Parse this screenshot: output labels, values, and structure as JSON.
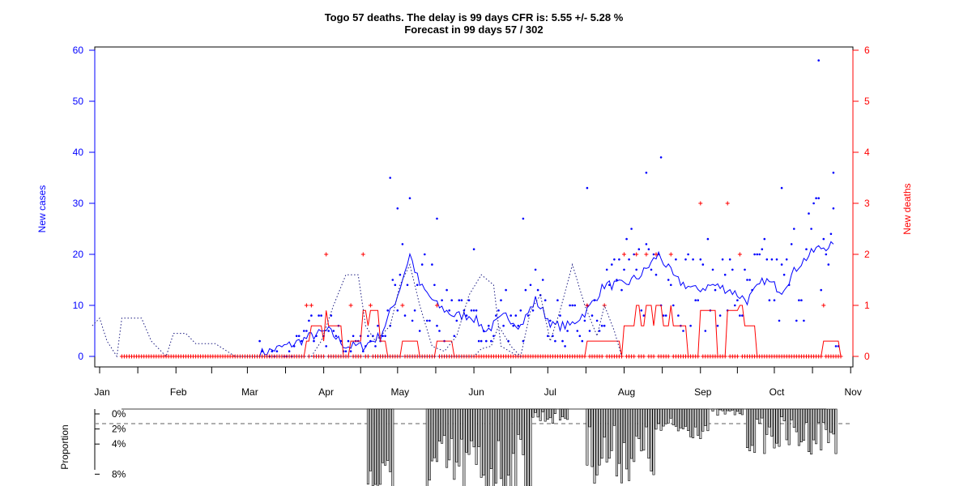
{
  "title_line1": "Togo 57 deaths. The delay is 99 days CFR is: 5.55 +/- 5.28 %",
  "title_line2": "Forecast in 99 days 57 / 302",
  "colors": {
    "cases": "#0000ff",
    "deaths": "#ff0000",
    "shifted": "#1a1a80",
    "axis": "#000000",
    "bar_fill": "#d3d3d3",
    "dashed": "#7f7f7f"
  },
  "chart_data": [
    {
      "type": "scatter",
      "title": "Togo 57 deaths. The delay is 99 days CFR is: 5.55 +/- 5.28 %",
      "subtitle": "Forecast in 99 days 57 / 302",
      "x_axis": {
        "ticks": [
          "Jan",
          "Feb",
          "Mar",
          "Apr",
          "May",
          "Jun",
          "Jul",
          "Aug",
          "Sep",
          "Oct",
          "Nov"
        ]
      },
      "y_left": {
        "label": "New cases",
        "ticks": [
          0,
          10,
          20,
          30,
          40,
          50,
          60
        ],
        "range": [
          0,
          60
        ]
      },
      "y_right": {
        "label": "New deaths",
        "ticks": [
          0,
          1,
          2,
          3,
          4,
          5,
          6
        ],
        "range": [
          0,
          6
        ]
      },
      "series": [
        {
          "name": "New cases",
          "peaks": [
            [
              "04-28",
              35
            ],
            [
              "05-01",
              29
            ],
            [
              "05-17",
              27
            ],
            [
              "06-01",
              21
            ],
            [
              "06-21",
              27
            ],
            [
              "07-17",
              33
            ],
            [
              "08-10",
              36
            ],
            [
              "08-16",
              39
            ],
            [
              "10-04",
              33
            ],
            [
              "10-19",
              58
            ],
            [
              "10-25",
              36
            ]
          ],
          "weekly_avg_points": [
            [
              "03-06",
              0.5
            ],
            [
              "03-13",
              1.5
            ],
            [
              "03-20",
              2.5
            ],
            [
              "03-27",
              4
            ],
            [
              "04-03",
              5
            ],
            [
              "04-10",
              2
            ],
            [
              "04-17",
              2
            ],
            [
              "04-24",
              4
            ],
            [
              "05-01",
              12
            ],
            [
              "05-06",
              20
            ],
            [
              "05-10",
              14
            ],
            [
              "05-17",
              10
            ],
            [
              "05-24",
              8
            ],
            [
              "05-31",
              8
            ],
            [
              "06-06",
              5
            ],
            [
              "06-14",
              8
            ],
            [
              "06-20",
              6
            ],
            [
              "06-26",
              11
            ],
            [
              "07-03",
              6
            ],
            [
              "07-10",
              6
            ],
            [
              "07-17",
              9
            ],
            [
              "07-24",
              14
            ],
            [
              "08-01",
              14
            ],
            [
              "08-08",
              16
            ],
            [
              "08-15",
              20
            ],
            [
              "08-22",
              15
            ],
            [
              "08-30",
              13
            ],
            [
              "09-06",
              14
            ],
            [
              "09-13",
              13
            ],
            [
              "09-20",
              11
            ],
            [
              "09-27",
              15
            ],
            [
              "10-04",
              13
            ],
            [
              "10-11",
              18
            ],
            [
              "10-18",
              21
            ],
            [
              "10-25",
              22
            ]
          ]
        },
        {
          "name": "New deaths",
          "nonzero_days": [
            [
              "04-02",
              2
            ],
            [
              "04-17",
              2
            ],
            [
              "03-25",
              1
            ],
            [
              "03-27",
              1
            ],
            [
              "04-12",
              1
            ],
            [
              "04-20",
              1
            ],
            [
              "05-03",
              1
            ],
            [
              "05-17",
              1
            ],
            [
              "07-17",
              1
            ],
            [
              "07-24",
              1
            ],
            [
              "08-01",
              2
            ],
            [
              "08-06",
              2
            ],
            [
              "08-10",
              2
            ],
            [
              "08-14",
              2
            ],
            [
              "08-20",
              2
            ],
            [
              "09-01",
              3
            ],
            [
              "09-12",
              3
            ],
            [
              "09-17",
              2
            ],
            [
              "10-21",
              1
            ]
          ]
        },
        {
          "name": "Deaths shifted by 99 days"
        }
      ]
    },
    {
      "type": "bar",
      "ylabel": "Proportion",
      "ticks": [
        "0%",
        "2%",
        "4%",
        "8%"
      ]
    }
  ]
}
